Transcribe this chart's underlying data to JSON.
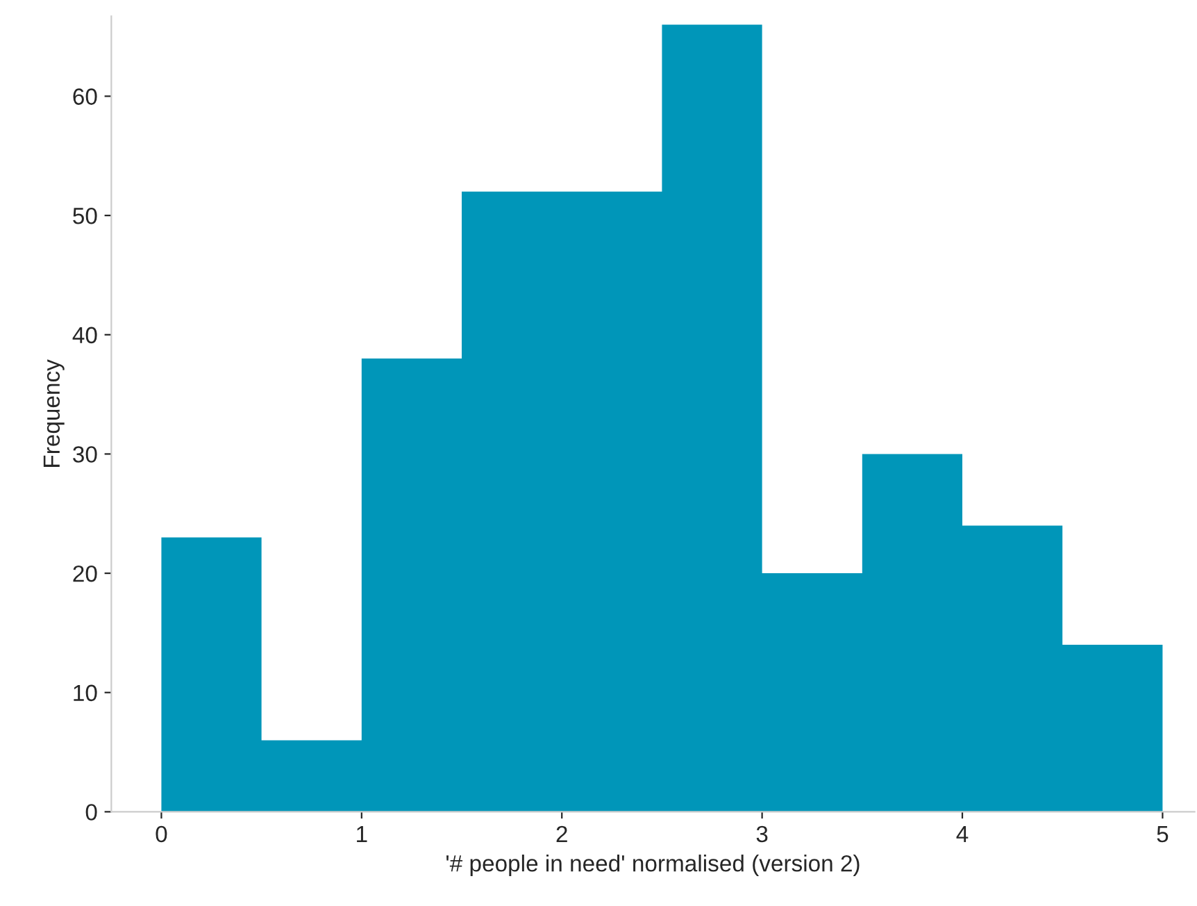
{
  "chart_data": {
    "type": "histogram",
    "xlabel": "'# people in need' normalised (version 2)",
    "ylabel": "Frequency",
    "bins": [
      0,
      0.5,
      1,
      1.5,
      2,
      2.5,
      3,
      3.5,
      4,
      4.5,
      5
    ],
    "values": [
      23,
      6,
      38,
      52,
      52,
      66,
      20,
      30,
      24,
      14
    ],
    "color": "#0096b9",
    "xlim": [
      -0.25,
      5.16
    ],
    "ylim": [
      0,
      66.7
    ],
    "xticks": [
      0,
      1,
      2,
      3,
      4,
      5
    ],
    "yticks": [
      0,
      10,
      20,
      30,
      40,
      50,
      60
    ],
    "grid": false
  }
}
